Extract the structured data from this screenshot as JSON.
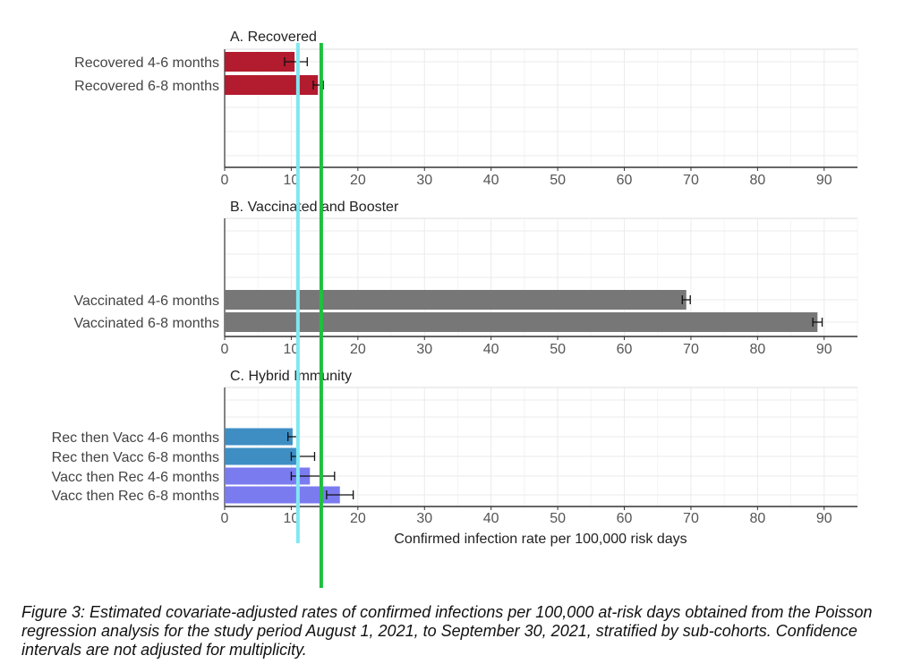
{
  "chart_data": {
    "type": "bar",
    "orientation": "horizontal",
    "xlabel": "Confirmed infection rate per 100,000 risk days",
    "xlim": [
      0,
      95
    ],
    "xticks": [
      0,
      10,
      20,
      30,
      40,
      50,
      60,
      70,
      80,
      90
    ],
    "grid": true,
    "panels": [
      {
        "id": "recovered",
        "title": "A. Recovered",
        "categories": [
          "Recovered 4-6 months",
          "Recovered 6-8 months"
        ],
        "values": [
          10.5,
          14.0
        ],
        "ci_lower": [
          9.0,
          13.3
        ],
        "ci_upper": [
          12.4,
          14.8
        ],
        "color": "#b31b2e"
      },
      {
        "id": "vaccinated",
        "title": "B. Vaccinated and Booster",
        "categories": [
          "Vaccinated 4-6 months",
          "Vaccinated 6-8 months"
        ],
        "values": [
          69.3,
          89.0
        ],
        "ci_lower": [
          68.7,
          88.3
        ],
        "ci_upper": [
          69.9,
          89.7
        ],
        "color": "#777777"
      },
      {
        "id": "hybrid",
        "title": "C. Hybrid Immunity",
        "categories": [
          "Rec then Vacc 4-6 months",
          "Rec then Vacc 6-8 months",
          "Vacc then Rec 4-6 months",
          "Vacc then Rec 6-8 months"
        ],
        "values": [
          10.2,
          11.0,
          12.8,
          17.3
        ],
        "ci_lower": [
          9.5,
          10.0,
          10.0,
          15.3
        ],
        "ci_upper": [
          11.0,
          13.5,
          16.5,
          19.3
        ],
        "colors": [
          "#3e8ec4",
          "#3e8ec4",
          "#7b7bf0",
          "#7b7bf0"
        ]
      }
    ],
    "reference_lines": [
      {
        "name": "cyan-reference-line",
        "value": 11.0,
        "color": "#7fe8f2"
      },
      {
        "name": "green-reference-line",
        "value": 14.5,
        "color": "#1fbf3f"
      }
    ]
  },
  "caption": {
    "text": "Figure 3: Estimated covariate-adjusted rates of confirmed infections per 100,000 at-risk days obtained from the Poisson regression analysis for the study period August 1, 2021, to September 30, 2021, stratified by sub-cohorts. Confidence intervals are not adjusted for multiplicity."
  }
}
